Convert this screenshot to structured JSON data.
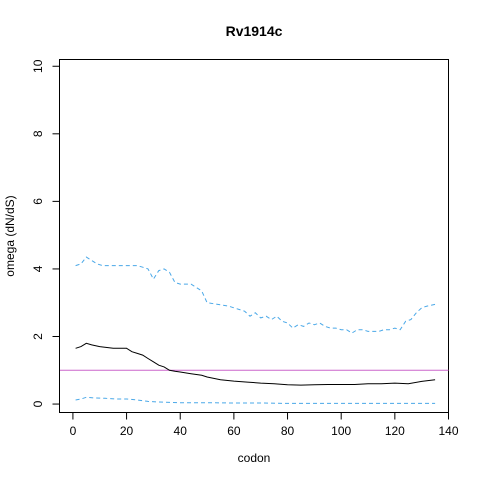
{
  "chart_data": {
    "type": "line",
    "title": "Rv1914c",
    "xlabel": "codon",
    "ylabel": "omega (dN/dS)",
    "xlim": [
      -5,
      140
    ],
    "ylim": [
      -0.25,
      10.2
    ],
    "x_ticks": [
      0,
      20,
      40,
      60,
      80,
      100,
      120,
      140
    ],
    "y_ticks": [
      0,
      2,
      4,
      6,
      8,
      10
    ],
    "grid": false,
    "legend": "none",
    "reference_line": {
      "y": 1,
      "color": "#cc66cc"
    },
    "series": [
      {
        "role": "upper",
        "color": "#4aa8e8",
        "dash": "dashed",
        "x": [
          1,
          3,
          5,
          7,
          9,
          11,
          15,
          20,
          22,
          24,
          26,
          28,
          30,
          32,
          34,
          36,
          38,
          40,
          44,
          48,
          50,
          54,
          58,
          62,
          64,
          66,
          68,
          70,
          72,
          74,
          76,
          78,
          80,
          82,
          84,
          86,
          88,
          90,
          92,
          94,
          96,
          98,
          100,
          102,
          104,
          106,
          108,
          110,
          112,
          114,
          116,
          118,
          120,
          122,
          124,
          126,
          128,
          130,
          132,
          135
        ],
        "y": [
          4.1,
          4.15,
          4.35,
          4.25,
          4.15,
          4.1,
          4.1,
          4.1,
          4.1,
          4.1,
          4.05,
          4.0,
          3.7,
          3.95,
          4.0,
          3.9,
          3.6,
          3.55,
          3.55,
          3.35,
          3.0,
          2.95,
          2.9,
          2.8,
          2.75,
          2.6,
          2.7,
          2.55,
          2.6,
          2.5,
          2.6,
          2.45,
          2.4,
          2.25,
          2.35,
          2.3,
          2.4,
          2.35,
          2.4,
          2.3,
          2.25,
          2.25,
          2.2,
          2.2,
          2.1,
          2.2,
          2.2,
          2.15,
          2.15,
          2.15,
          2.2,
          2.2,
          2.25,
          2.2,
          2.45,
          2.5,
          2.7,
          2.85,
          2.9,
          2.95
        ]
      },
      {
        "role": "estimate",
        "color": "#000000",
        "dash": "solid",
        "x": [
          1,
          3,
          5,
          7,
          10,
          15,
          20,
          22,
          24,
          26,
          28,
          30,
          32,
          34,
          36,
          38,
          40,
          44,
          48,
          50,
          55,
          60,
          65,
          70,
          75,
          80,
          85,
          90,
          95,
          100,
          105,
          110,
          115,
          120,
          125,
          130,
          135
        ],
        "y": [
          1.65,
          1.7,
          1.8,
          1.75,
          1.7,
          1.65,
          1.65,
          1.55,
          1.5,
          1.45,
          1.35,
          1.25,
          1.15,
          1.1,
          1.0,
          0.97,
          0.95,
          0.9,
          0.85,
          0.8,
          0.72,
          0.68,
          0.65,
          0.62,
          0.6,
          0.57,
          0.56,
          0.57,
          0.58,
          0.58,
          0.58,
          0.6,
          0.6,
          0.62,
          0.6,
          0.67,
          0.72
        ]
      },
      {
        "role": "lower",
        "color": "#4aa8e8",
        "dash": "dashed",
        "x": [
          1,
          3,
          5,
          8,
          12,
          16,
          20,
          24,
          28,
          32,
          36,
          40,
          50,
          60,
          70,
          80,
          90,
          100,
          110,
          120,
          130,
          135
        ],
        "y": [
          0.12,
          0.15,
          0.2,
          0.18,
          0.17,
          0.15,
          0.15,
          0.12,
          0.08,
          0.06,
          0.05,
          0.04,
          0.04,
          0.03,
          0.03,
          0.02,
          0.02,
          0.02,
          0.02,
          0.02,
          0.02,
          0.02
        ]
      }
    ]
  }
}
